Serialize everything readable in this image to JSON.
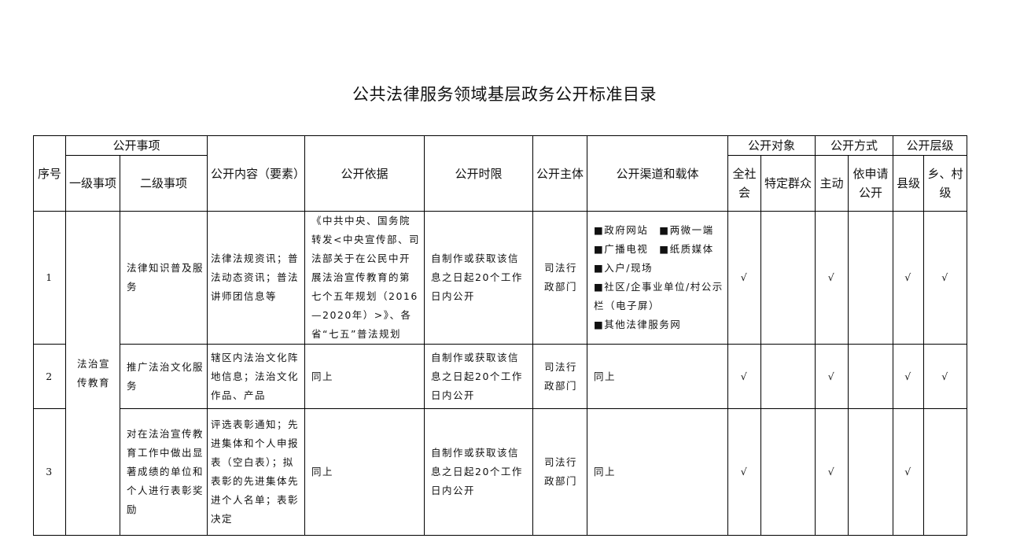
{
  "title": "公共法律服务领域基层政务公开标准目录",
  "header": {
    "seq": "序号",
    "items": "公开事项",
    "level1": "一级事项",
    "level2": "二级事项",
    "content": "公开内容（要素）",
    "basis": "公开依据",
    "time_limit": "公开时限",
    "subject": "公开主体",
    "channel": "公开渠道和载体",
    "target": "公开对象",
    "all_society": "全社会",
    "specific": "特定群众",
    "method": "公开方式",
    "active": "主动",
    "on_request": "依申请公开",
    "level": "公开层级",
    "county": "县级",
    "township": "乡、村级"
  },
  "level1_item": "法治宣传教育",
  "check": "√",
  "channel_items": [
    "■政府网站　■两微一端",
    "■广播电视　■纸质媒体",
    "■入户/现场",
    "■社区/企事业单位/村公示栏（电子屏）",
    "■其他法律服务网"
  ],
  "rows": [
    {
      "seq": "1",
      "level2": "法律知识普及服务",
      "content": "法律法规资讯；普法动态资讯；普法讲师团信息等",
      "basis": "《中共中央、国务院转发<中央宣传部、司法部关于在公民中开展法治宣传教育的第七个五年规划（2016—2020年）>》、各省“七五”普法规划",
      "time_limit": "自制作或获取该信息之日起20个工作日内公开",
      "subject": "司法行政部门",
      "all_society": true,
      "specific": false,
      "active": true,
      "on_request": false,
      "county": true,
      "township": true
    },
    {
      "seq": "2",
      "level2": "推广法治文化服务",
      "content": "辖区内法治文化阵地信息；法治文化作品、产品",
      "basis": "同上",
      "time_limit": "自制作或获取该信息之日起20个工作日内公开",
      "subject": "司法行政部门",
      "channel": "同上",
      "all_society": true,
      "specific": false,
      "active": true,
      "on_request": false,
      "county": true,
      "township": true
    },
    {
      "seq": "3",
      "level2": "对在法治宣传教育工作中做出显著成绩的单位和个人进行表彰奖励",
      "content": "评选表彰通知；先进集体和个人申报表（空白表）；拟表彰的先进集体先进个人名单；表彰决定",
      "basis": "同上",
      "time_limit": "自制作或获取该信息之日起20个工作日内公开",
      "subject": "司法行政部门",
      "channel": "同上",
      "all_society": true,
      "specific": false,
      "active": true,
      "on_request": false,
      "county": true,
      "township": false
    }
  ]
}
